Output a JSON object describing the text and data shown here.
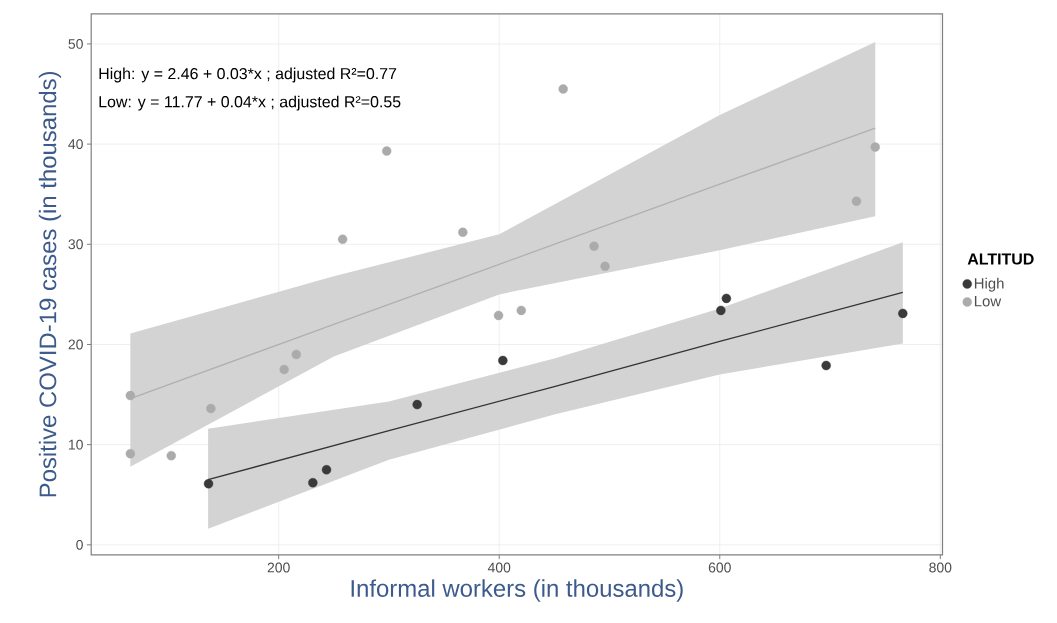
{
  "chart_data": {
    "type": "scatter",
    "xlabel": "Informal workers (in thousands)",
    "ylabel": "Positive COVID-19 cases (in thousands)",
    "legend_title": "ALTITUD",
    "annotations": [
      "High: y = 2.46 + 0.03*x ; adjusted R²=0.77",
      "Low: y = 11.77 + 0.04*x ; adjusted R²=0.55"
    ],
    "xlim": [
      30,
      802
    ],
    "ylim": [
      -1,
      53
    ],
    "xticks": [
      200,
      400,
      600,
      800
    ],
    "yticks": [
      0,
      10,
      20,
      30,
      40,
      50
    ],
    "grid": true,
    "legend": "right",
    "series": [
      {
        "type": "line",
        "marker": "none",
        "color": "#b0b0b0",
        "x": [
          65.5,
          250,
          400,
          600,
          741
        ],
        "values": [
          14.6,
          22.0,
          28.0,
          36.0,
          41.6
        ],
        "lower": [
          7.8,
          18.8,
          25.0,
          29.4,
          32.8
        ],
        "upper": [
          21.1,
          26.8,
          31.0,
          42.9,
          50.2
        ]
      },
      {
        "type": "line",
        "marker": "none",
        "color": "#333333",
        "x": [
          136,
          300,
          450,
          600,
          766
        ],
        "values": [
          6.5,
          11.4,
          15.8,
          20.3,
          25.2
        ],
        "lower": [
          1.6,
          8.5,
          13.0,
          17.0,
          20.1
        ],
        "upper": [
          11.6,
          14.3,
          18.6,
          23.6,
          30.2
        ]
      },
      {
        "name": "High",
        "marker": "circle",
        "color": "#3a3a3a",
        "x": [
          136.4,
          231,
          243.4,
          325.6,
          403.3,
          601,
          606,
          696.5,
          766
        ],
        "values": [
          6.1,
          6.2,
          7.5,
          14.0,
          18.4,
          23.4,
          24.6,
          17.9,
          23.1
        ]
      },
      {
        "name": "Low",
        "marker": "circle",
        "color": "#ababab",
        "x": [
          65.5,
          65.5,
          102.6,
          138.5,
          205,
          216,
          258,
          298,
          367,
          399.4,
          420,
          458,
          486,
          496,
          724,
          741
        ],
        "values": [
          14.9,
          9.1,
          8.9,
          13.6,
          17.5,
          19.0,
          30.5,
          39.3,
          31.2,
          22.9,
          23.4,
          45.5,
          29.8,
          27.8,
          34.3,
          39.7
        ]
      }
    ]
  }
}
